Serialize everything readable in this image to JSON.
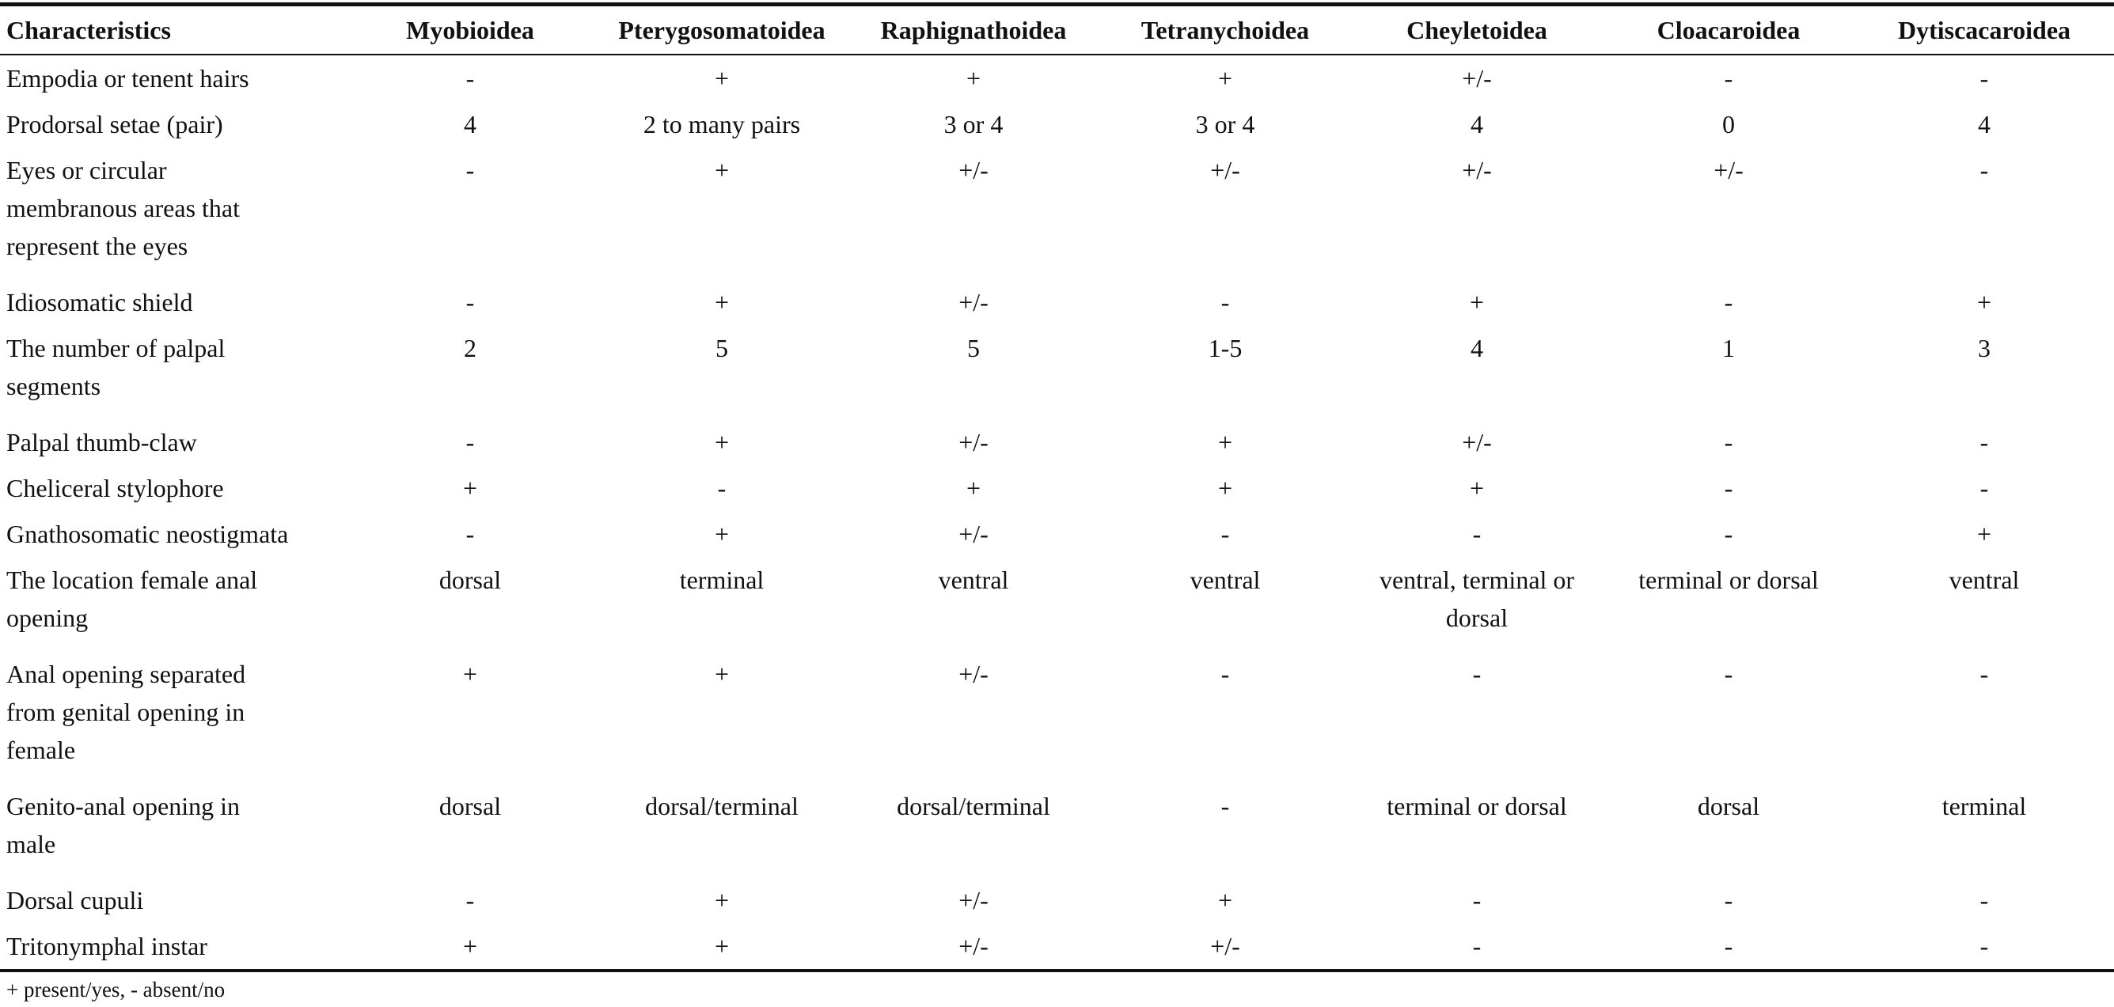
{
  "table": {
    "columns": [
      "Characteristics",
      "Myobioidea",
      "Pterygosomatoidea",
      "Raphignathoidea",
      "Tetranychoidea",
      "Cheyletoidea",
      "Cloacaroidea",
      "Dytiscacaroidea"
    ],
    "rows": [
      [
        "Empodia or tenent hairs",
        "-",
        "+",
        "+",
        "+",
        "+/-",
        "-",
        "-"
      ],
      [
        "Prodorsal setae (pair)",
        "4",
        "2 to many pairs",
        "3 or 4",
        "3 or 4",
        "4",
        "0",
        "4"
      ],
      [
        "Eyes or circular\nmembranous areas that\nrepresent the eyes",
        "-",
        "+",
        "+/-",
        "+/-",
        "+/-",
        "+/-",
        "-"
      ],
      [
        "Idiosomatic shield",
        "-",
        "+",
        "+/-",
        "-",
        "+",
        "-",
        "+"
      ],
      [
        "The number of palpal\nsegments",
        "2",
        "5",
        "5",
        "1-5",
        "4",
        "1",
        "3"
      ],
      [
        "Palpal thumb-claw",
        "-",
        "+",
        "+/-",
        "+",
        "+/-",
        "-",
        "-"
      ],
      [
        "Cheliceral stylophore",
        "+",
        "-",
        "+",
        "+",
        "+",
        "-",
        "-"
      ],
      [
        "Gnathosomatic neostigmata",
        "-",
        "+",
        "+/-",
        "-",
        "-",
        "-",
        "+"
      ],
      [
        "The location female anal\nopening",
        "dorsal",
        "terminal",
        "ventral",
        "ventral",
        "ventral, terminal or\ndorsal",
        "terminal or dorsal",
        "ventral"
      ],
      [
        "Anal opening separated\nfrom genital opening in\nfemale",
        "+",
        "+",
        "+/-",
        "-",
        "-",
        "-",
        "-"
      ],
      [
        "Genito-anal opening in\nmale",
        "dorsal",
        "dorsal/terminal",
        "dorsal/terminal",
        "-",
        "terminal or dorsal",
        "dorsal",
        "terminal"
      ],
      [
        "Dorsal cupuli",
        "-",
        "+",
        "+/-",
        "+",
        "-",
        "-",
        "-"
      ],
      [
        "Tritonymphal instar",
        "+",
        "+",
        "+/-",
        "+/-",
        "-",
        "-",
        "-"
      ]
    ]
  },
  "footnote": "+ present/yes, - absent/no"
}
